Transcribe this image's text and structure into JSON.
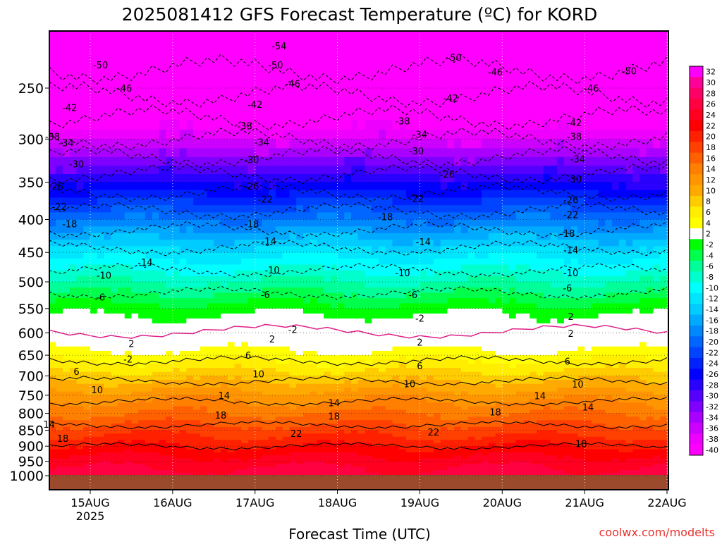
{
  "chart_data": {
    "type": "heatmap",
    "title": "2025081412 GFS Forecast Temperature (ºC) for KORD",
    "xlabel": "Forecast Time (UTC)",
    "ylabel": "",
    "credit": "coolwx.com/modelts",
    "x_ticks": [
      {
        "label": "15AUG",
        "sublabel": "2025",
        "t": 12
      },
      {
        "label": "16AUG",
        "sublabel": "",
        "t": 36
      },
      {
        "label": "17AUG",
        "sublabel": "",
        "t": 60
      },
      {
        "label": "18AUG",
        "sublabel": "",
        "t": 84
      },
      {
        "label": "19AUG",
        "sublabel": "",
        "t": 108
      },
      {
        "label": "20AUG",
        "sublabel": "",
        "t": 132
      },
      {
        "label": "21AUG",
        "sublabel": "",
        "t": 156
      },
      {
        "label": "22AUG",
        "sublabel": "",
        "t": 180
      }
    ],
    "x_range_hours": [
      0,
      180
    ],
    "y_ticks": [
      250,
      300,
      350,
      400,
      450,
      500,
      550,
      600,
      650,
      700,
      750,
      800,
      850,
      900,
      950,
      1000
    ],
    "y_range_hpa": [
      1000,
      200
    ],
    "y_scale": "log pressure",
    "grid": "dotted",
    "surface_color": "#9b4a2c",
    "freezing_line_color": "#e0208a",
    "colorbar": {
      "labels": [
        "32",
        "30",
        "28",
        "26",
        "24",
        "22",
        "20",
        "18",
        "16",
        "14",
        "12",
        "10",
        "8",
        "6",
        "4",
        "2",
        "-2",
        "-4",
        "-6",
        "-8",
        "-10",
        "-12",
        "-14",
        "-16",
        "-18",
        "-20",
        "-22",
        "-24",
        "-26",
        "-28",
        "-30",
        "-32",
        "-34",
        "-36",
        "-38",
        "-40"
      ],
      "colors": [
        "#ff00ff",
        "#ff0099",
        "#ff0066",
        "#ff0040",
        "#ff0020",
        "#ff0000",
        "#ff2000",
        "#ff4000",
        "#ff6000",
        "#ff8000",
        "#ff9500",
        "#ffaa00",
        "#ffcc00",
        "#ffee00",
        "#ffff00",
        "#ffffff",
        "#00ff00",
        "#00ff4c",
        "#00ff99",
        "#00ffcc",
        "#00ffff",
        "#00e6ff",
        "#00ccff",
        "#00aaff",
        "#0088ff",
        "#0066ff",
        "#0044ff",
        "#0022ff",
        "#0000ff",
        "#2a00ff",
        "#5500ff",
        "#7f00ff",
        "#aa00ff",
        "#cc00ff",
        "#ee00ff",
        "#ff00ff"
      ],
      "position": "right"
    },
    "temperature_profile": {
      "pressure_hpa": [
        200,
        250,
        300,
        350,
        400,
        450,
        500,
        550,
        600,
        650,
        700,
        750,
        800,
        850,
        900,
        950,
        1000
      ],
      "temp_c": [
        -56,
        -47,
        -38,
        -28,
        -20,
        -13,
        -8,
        -3,
        1,
        5,
        9,
        13,
        16,
        19,
        22,
        25,
        27
      ]
    },
    "contour_labels": [
      {
        "text": "-54",
        "t": 67,
        "p": 215
      },
      {
        "text": "-50",
        "t": 15,
        "p": 230
      },
      {
        "text": "-50",
        "t": 66,
        "p": 230
      },
      {
        "text": "-50",
        "t": 118,
        "p": 224
      },
      {
        "text": "-50",
        "t": 169,
        "p": 235
      },
      {
        "text": "-46",
        "t": 22,
        "p": 250
      },
      {
        "text": "-46",
        "t": 71,
        "p": 246
      },
      {
        "text": "-46",
        "t": 130,
        "p": 236
      },
      {
        "text": "-46",
        "t": 158,
        "p": 250
      },
      {
        "text": "-42",
        "t": 6,
        "p": 268
      },
      {
        "text": "-42",
        "t": 60,
        "p": 265
      },
      {
        "text": "-42",
        "t": 117,
        "p": 259
      },
      {
        "text": "-42",
        "t": 153,
        "p": 283
      },
      {
        "text": "-38",
        "t": 1,
        "p": 297
      },
      {
        "text": "-38",
        "t": 57,
        "p": 286
      },
      {
        "text": "-38",
        "t": 103,
        "p": 281
      },
      {
        "text": "-38",
        "t": 153,
        "p": 297
      },
      {
        "text": "-34",
        "t": 5,
        "p": 304
      },
      {
        "text": "-34",
        "t": 62,
        "p": 303
      },
      {
        "text": "-34",
        "t": 108,
        "p": 295
      },
      {
        "text": "-34",
        "t": 154,
        "p": 322
      },
      {
        "text": "-30",
        "t": 8,
        "p": 328
      },
      {
        "text": "-30",
        "t": 59,
        "p": 323
      },
      {
        "text": "-30",
        "t": 107,
        "p": 313
      },
      {
        "text": "-30",
        "t": 153,
        "p": 346
      },
      {
        "text": "-26",
        "t": 2,
        "p": 355
      },
      {
        "text": "-26",
        "t": 59,
        "p": 355
      },
      {
        "text": "-26",
        "t": 116,
        "p": 340
      },
      {
        "text": "-26",
        "t": 152,
        "p": 373
      },
      {
        "text": "-22",
        "t": 3,
        "p": 382
      },
      {
        "text": "-22",
        "t": 63,
        "p": 372
      },
      {
        "text": "-22",
        "t": 107,
        "p": 371
      },
      {
        "text": "-22",
        "t": 152,
        "p": 393
      },
      {
        "text": "-18",
        "t": 6,
        "p": 406
      },
      {
        "text": "-18",
        "t": 59,
        "p": 406
      },
      {
        "text": "-18",
        "t": 98,
        "p": 396
      },
      {
        "text": "-18",
        "t": 151,
        "p": 420
      },
      {
        "text": "-14",
        "t": 28,
        "p": 466
      },
      {
        "text": "-14",
        "t": 64,
        "p": 432
      },
      {
        "text": "-14",
        "t": 109,
        "p": 433
      },
      {
        "text": "-14",
        "t": 152,
        "p": 446
      },
      {
        "text": "-10",
        "t": 16,
        "p": 488
      },
      {
        "text": "-10",
        "t": 65,
        "p": 479
      },
      {
        "text": "-10",
        "t": 103,
        "p": 484
      },
      {
        "text": "-10",
        "t": 152,
        "p": 484
      },
      {
        "text": "-6",
        "t": 15,
        "p": 528
      },
      {
        "text": "-6",
        "t": 63,
        "p": 523
      },
      {
        "text": "-6",
        "t": 106,
        "p": 523
      },
      {
        "text": "-6",
        "t": 151,
        "p": 511
      },
      {
        "text": "-2",
        "t": 108,
        "p": 569
      },
      {
        "text": "-2",
        "t": 71,
        "p": 593
      },
      {
        "text": "2",
        "t": 152,
        "p": 566
      },
      {
        "text": "2",
        "t": 24,
        "p": 623
      },
      {
        "text": "2",
        "t": 65,
        "p": 613
      },
      {
        "text": "2",
        "t": 108,
        "p": 620
      },
      {
        "text": "2",
        "t": 152,
        "p": 601
      },
      {
        "text": "-2",
        "t": 23,
        "p": 659
      },
      {
        "text": "6",
        "t": 58,
        "p": 650
      },
      {
        "text": "6",
        "t": 108,
        "p": 675
      },
      {
        "text": "6",
        "t": 151,
        "p": 664
      },
      {
        "text": "6",
        "t": 8,
        "p": 689
      },
      {
        "text": "10",
        "t": 61,
        "p": 695
      },
      {
        "text": "10",
        "t": 105,
        "p": 720
      },
      {
        "text": "10",
        "t": 154,
        "p": 721
      },
      {
        "text": "10",
        "t": 14,
        "p": 735
      },
      {
        "text": "14",
        "t": 51,
        "p": 750
      },
      {
        "text": "14",
        "t": 83,
        "p": 770
      },
      {
        "text": "14",
        "t": 143,
        "p": 751
      },
      {
        "text": "14",
        "t": 157,
        "p": 782
      },
      {
        "text": "14",
        "t": 0,
        "p": 832
      },
      {
        "text": "18",
        "t": 50,
        "p": 805
      },
      {
        "text": "18",
        "t": 83,
        "p": 808
      },
      {
        "text": "18",
        "t": 130,
        "p": 796
      },
      {
        "text": "18",
        "t": 4,
        "p": 875
      },
      {
        "text": "18",
        "t": 155,
        "p": 892
      },
      {
        "text": "22",
        "t": 72,
        "p": 860
      },
      {
        "text": "22",
        "t": 112,
        "p": 855
      }
    ]
  }
}
